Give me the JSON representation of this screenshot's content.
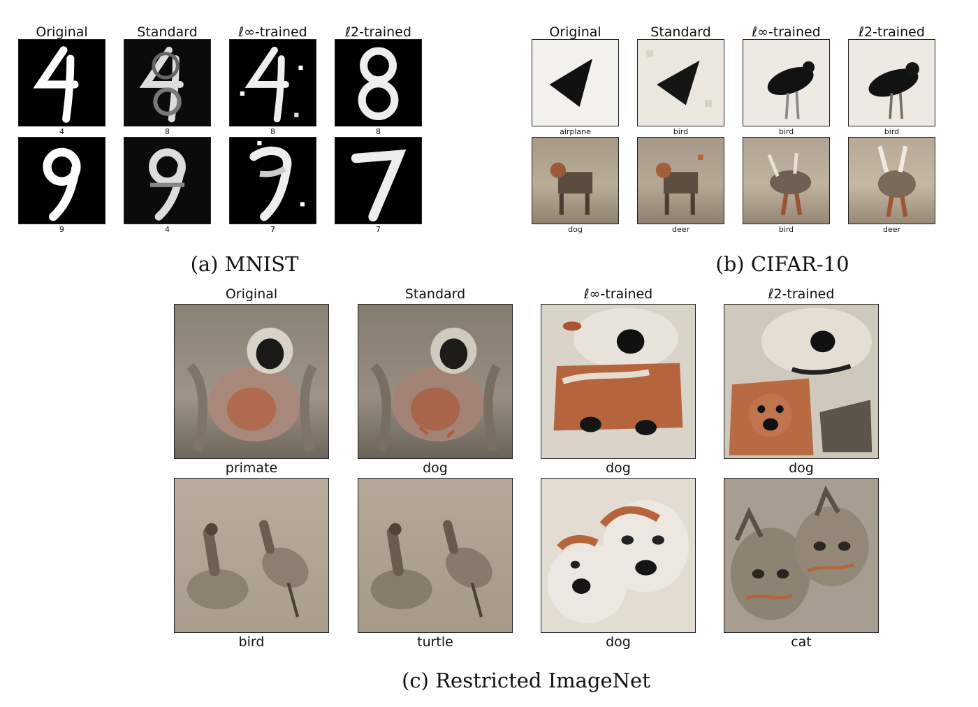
{
  "figure": {
    "columns": [
      "Original",
      "Standard",
      "ℓ∞-trained",
      "ℓ2-trained"
    ],
    "panels": [
      {
        "id": "mnist",
        "caption": "(a) MNIST",
        "rows": [
          {
            "labels": [
              "4",
              "8",
              "8",
              "8"
            ]
          },
          {
            "labels": [
              "9",
              "4",
              "7",
              "7"
            ]
          }
        ]
      },
      {
        "id": "cifar10",
        "caption": "(b) CIFAR-10",
        "rows": [
          {
            "labels": [
              "airplane",
              "bird",
              "bird",
              "bird"
            ]
          },
          {
            "labels": [
              "dog",
              "deer",
              "bird",
              "deer"
            ]
          }
        ]
      },
      {
        "id": "imagenet",
        "caption": "(c) Restricted ImageNet",
        "rows": [
          {
            "labels": [
              "primate",
              "dog",
              "dog",
              "dog"
            ]
          },
          {
            "labels": [
              "bird",
              "turtle",
              "dog",
              "cat"
            ]
          }
        ]
      }
    ]
  }
}
